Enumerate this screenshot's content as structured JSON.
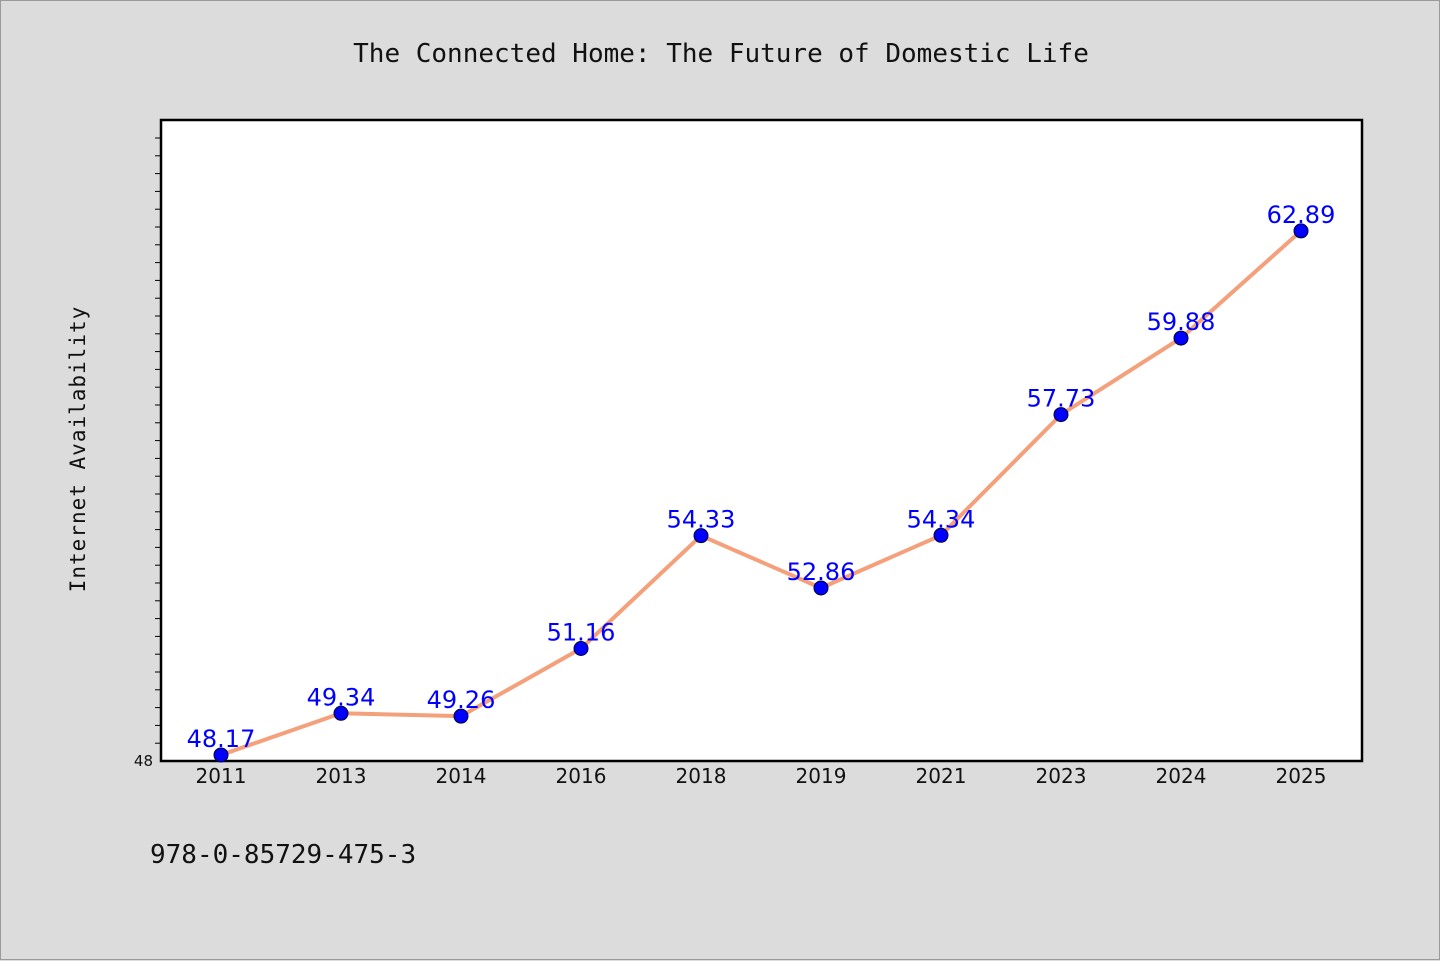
{
  "chart_data": {
    "type": "line",
    "title": "The Connected Home: The Future of Domestic Life",
    "xlabel": "",
    "ylabel": "Internet Availability",
    "categories": [
      "2011",
      "2013",
      "2014",
      "2016",
      "2018",
      "2019",
      "2021",
      "2023",
      "2024",
      "2025"
    ],
    "series": [
      {
        "values": [
          48.17,
          49.34,
          49.26,
          51.16,
          54.33,
          52.86,
          54.34,
          57.73,
          59.88,
          62.89
        ]
      }
    ],
    "data_labels": [
      "48.17",
      "49.34",
      "49.26",
      "51.16",
      "54.33",
      "52.86",
      "54.34",
      "57.73",
      "59.88",
      "62.89"
    ],
    "ylim": [
      48,
      66
    ],
    "y_tick_labels": [
      "48"
    ],
    "grid": false,
    "legend": "none",
    "colors": {
      "line": "#f4a07a",
      "marker": "#0000ff",
      "data_label": "#0000ff",
      "plot_background": "#ffffff",
      "page_background": "#dcdcdc"
    }
  },
  "footer": {
    "isbn": "978-0-85729-475-3"
  }
}
